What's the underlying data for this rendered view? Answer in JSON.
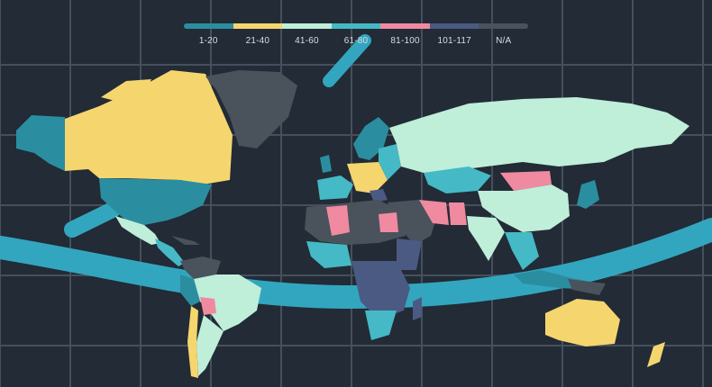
{
  "legend": {
    "items": [
      {
        "label": "1-20",
        "color": "#2a8ea0"
      },
      {
        "label": "21-40",
        "color": "#f5d66e"
      },
      {
        "label": "41-60",
        "color": "#bfeed9"
      },
      {
        "label": "61-80",
        "color": "#45b9c6"
      },
      {
        "label": "81-100",
        "color": "#f08aa0"
      },
      {
        "label": "101-117",
        "color": "#4b5a82"
      },
      {
        "label": "N/A",
        "color": "#4a525c"
      }
    ]
  },
  "colors": {
    "background": "#222b36",
    "grid": "#46505c",
    "band": "#33a6bf"
  }
}
